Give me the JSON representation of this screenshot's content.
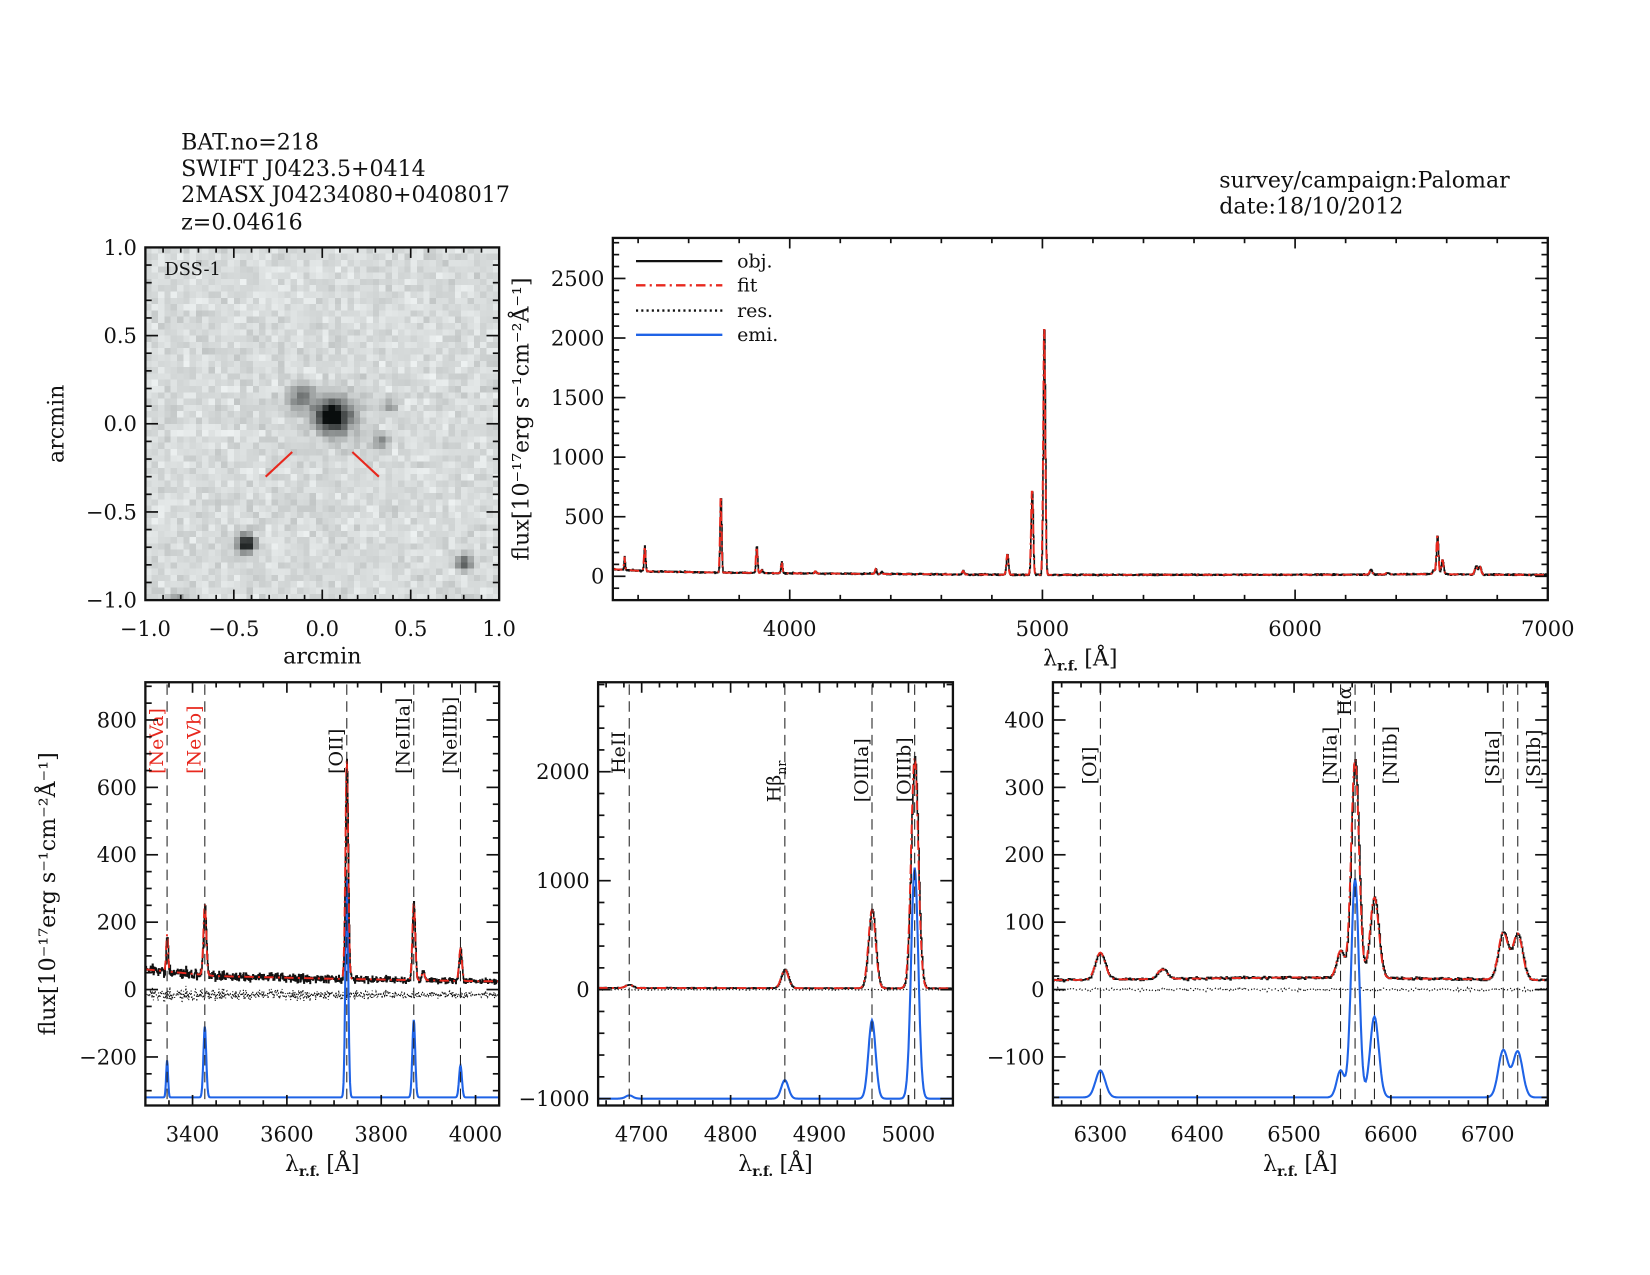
{
  "header": {
    "lines": [
      "BAT.no=218",
      "SWIFT J0423.5+0414",
      "2MASX J04234080+0408017",
      "z=0.04616"
    ],
    "survey": "survey/campaign:Palomar",
    "date": "date:18/10/2012"
  },
  "colors": {
    "obj": "#111111",
    "fit": "#e8281e",
    "res": "#111111",
    "emi": "#1f63e6",
    "label_red": "#e8281e",
    "label_black": "#111111"
  },
  "flux_label": "flux[10⁻¹⁷erg s⁻¹cm⁻²Å⁻¹]",
  "wavelength_label": {
    "symbol": "λ",
    "sub": "r.f.",
    "unit": "[Å]"
  },
  "spectrum_model": {
    "continuum": [
      [
        3300,
        60
      ],
      [
        3450,
        40
      ],
      [
        3700,
        32
      ],
      [
        4000,
        25
      ],
      [
        4700,
        15
      ],
      [
        5050,
        12
      ],
      [
        6250,
        14
      ],
      [
        6500,
        18
      ],
      [
        6650,
        16
      ],
      [
        6760,
        14
      ],
      [
        7000,
        12
      ]
    ],
    "lines": [
      {
        "label": "[NeVa]",
        "wl": 3346,
        "peak": 110,
        "sigma": 2,
        "color": "red"
      },
      {
        "label": "[NeVb]",
        "wl": 3426,
        "peak": 210,
        "sigma": 3,
        "color": "red"
      },
      {
        "label": "[OII]",
        "wl": 3727,
        "peak": 650,
        "sigma": 3,
        "color": "black"
      },
      {
        "label": "[NeIIIa]",
        "wl": 3869,
        "peak": 230,
        "sigma": 3,
        "color": "black"
      },
      {
        "label": "[NeIIIb]",
        "wl": 3968,
        "peak": 95,
        "sigma": 3,
        "color": "black"
      },
      {
        "label": "HeII",
        "wl": 4686,
        "peak": 30,
        "sigma": 4,
        "color": "black"
      },
      {
        "label": "Hβ",
        "sub": "nr",
        "wl": 4861,
        "peak": 170,
        "sigma": 4,
        "color": "black"
      },
      {
        "label": "[OIIIa]",
        "wl": 4959,
        "peak": 720,
        "sigma": 4,
        "color": "black"
      },
      {
        "label": "[OIIIb]",
        "wl": 5007,
        "peak": 2120,
        "sigma": 4,
        "color": "black"
      },
      {
        "label": "[OI]",
        "wl": 6300,
        "peak": 40,
        "sigma": 5,
        "color": "black"
      },
      {
        "label": "[NIIa]",
        "wl": 6548,
        "peak": 40,
        "sigma": 4,
        "color": "black"
      },
      {
        "label": "Hα",
        "wl": 6563,
        "peak": 325,
        "sigma": 4,
        "color": "black"
      },
      {
        "label": "[NIIb]",
        "wl": 6583,
        "peak": 120,
        "sigma": 4.5,
        "color": "black"
      },
      {
        "label": "[SIIa]",
        "wl": 6716,
        "peak": 70,
        "sigma": 5,
        "color": "black"
      },
      {
        "label": "[SIIb]",
        "wl": 6731,
        "peak": 68,
        "sigma": 5,
        "color": "black"
      }
    ],
    "unlabeled_lines": [
      {
        "wl": 3889,
        "peak": 25,
        "sigma": 3
      },
      {
        "wl": 4101,
        "peak": 20,
        "sigma": 3
      },
      {
        "wl": 4340,
        "peak": 40,
        "sigma": 3
      },
      {
        "wl": 4363,
        "peak": 20,
        "sigma": 3
      },
      {
        "wl": 6364,
        "peak": 14,
        "sigma": 5
      }
    ]
  },
  "chart_data": [
    {
      "type": "image",
      "title": "DSS-1",
      "xlabel": "arcmin",
      "ylabel": "arcmin",
      "xlim": [
        -1,
        1
      ],
      "ylim": [
        -1,
        1
      ],
      "xticks": [
        -1,
        -0.5,
        0,
        0.5,
        1
      ],
      "xtick_labels": [
        "−1.0",
        "−0.5",
        "0.0",
        "0.5",
        "1.0"
      ],
      "yticks": [
        -1,
        -0.5,
        0,
        0.5,
        1
      ],
      "ytick_labels": [
        "−1.0",
        "−0.5",
        "0.0",
        "0.5",
        "1.0"
      ],
      "marker_color": "#e8281e"
    },
    {
      "type": "line",
      "xlim": [
        3300,
        7000
      ],
      "ylim": [
        -200,
        2840
      ],
      "xticks": [
        4000,
        5000,
        6000,
        7000
      ],
      "xtick_labels": [
        "4000",
        "5000",
        "6000",
        "7000"
      ],
      "yticks": [
        0,
        500,
        1000,
        1500,
        2000,
        2500
      ],
      "ytick_labels": [
        "0",
        "500",
        "1000",
        "1500",
        "2000",
        "2500"
      ],
      "legend": [
        {
          "name": "obj.",
          "style": "solid",
          "color": "#111111"
        },
        {
          "name": "fit",
          "style": "dash-dot",
          "color": "#e8281e"
        },
        {
          "name": "res.",
          "style": "dotted",
          "color": "#111111"
        },
        {
          "name": "emi.",
          "style": "solid",
          "color": "#1f63e6"
        }
      ],
      "legend_position": "top-left",
      "series": [
        "obj",
        "fit"
      ]
    },
    {
      "type": "line",
      "xlim": [
        3300,
        4050
      ],
      "ylim": [
        -344,
        912
      ],
      "xticks": [
        3400,
        3600,
        3800,
        4000
      ],
      "xtick_labels": [
        "3400",
        "3600",
        "3800",
        "4000"
      ],
      "yticks": [
        -200,
        0,
        200,
        400,
        600,
        800
      ],
      "ytick_labels": [
        "−200",
        "0",
        "200",
        "400",
        "600",
        "800"
      ],
      "emission_baseline": -320,
      "marked_lines": [
        "[NeVa]",
        "[NeVb]",
        "[OII]",
        "[NeIIIa]",
        "[NeIIIb]"
      ],
      "series": [
        "obj",
        "fit",
        "res",
        "emi"
      ]
    },
    {
      "type": "line",
      "xlim": [
        4651,
        5050
      ],
      "ylim": [
        -1063,
        2821
      ],
      "xticks": [
        4700,
        4800,
        4900,
        5000
      ],
      "xtick_labels": [
        "4700",
        "4800",
        "4900",
        "5000"
      ],
      "yticks": [
        -1000,
        0,
        1000,
        2000
      ],
      "ytick_labels": [
        "−1000",
        "0",
        "1000",
        "2000"
      ],
      "emission_baseline": -1000,
      "marked_lines": [
        "HeII",
        "Hβ",
        "[OIIIa]",
        "[OIIIb]"
      ],
      "series": [
        "obj",
        "fit",
        "res",
        "emi"
      ]
    },
    {
      "type": "line",
      "xlim": [
        6251,
        6762
      ],
      "ylim": [
        -172,
        456
      ],
      "xticks": [
        6300,
        6400,
        6500,
        6600,
        6700
      ],
      "xtick_labels": [
        "6300",
        "6400",
        "6500",
        "6600",
        "6700"
      ],
      "yticks": [
        -100,
        0,
        100,
        200,
        300,
        400
      ],
      "ytick_labels": [
        "−100",
        "0",
        "100",
        "200",
        "300",
        "400"
      ],
      "emission_baseline": -160,
      "marked_lines": [
        "[OI]",
        "[NIIa]",
        "Hα",
        "[NIIb]",
        "[SIIa]",
        "[SIIb]"
      ],
      "series": [
        "obj",
        "fit",
        "res",
        "emi"
      ]
    }
  ]
}
